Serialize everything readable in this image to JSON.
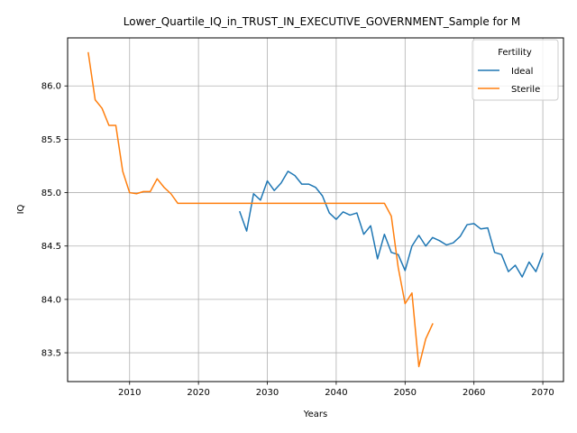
{
  "chart_data": {
    "type": "line",
    "title": "Lower_Quartile_IQ_in_TRUST_IN_EXECUTIVE_GOVERNMENT_Sample for M",
    "xlabel": "Years",
    "ylabel": "IQ",
    "xlim": [
      2001,
      2073
    ],
    "ylim": [
      83.23,
      86.45
    ],
    "xticks": [
      2010,
      2020,
      2030,
      2040,
      2050,
      2060,
      2070
    ],
    "yticks": [
      83.5,
      84.0,
      84.5,
      85.0,
      85.5,
      86.0
    ],
    "ytick_labels": [
      "83.5",
      "84.0",
      "84.5",
      "85.0",
      "85.5",
      "86.0"
    ],
    "grid": true,
    "legend": {
      "title": "Fertility",
      "placement": "top-right"
    },
    "series": [
      {
        "name": "Ideal",
        "color": "#1f77b4",
        "x": [
          2026,
          2027,
          2028,
          2029,
          2030,
          2031,
          2032,
          2033,
          2034,
          2035,
          2036,
          2037,
          2038,
          2039,
          2040,
          2041,
          2042,
          2043,
          2044,
          2045,
          2046,
          2047,
          2048,
          2049,
          2050,
          2051,
          2052,
          2053,
          2054,
          2055,
          2056,
          2057,
          2058,
          2059,
          2060,
          2061,
          2062,
          2063,
          2064,
          2065,
          2066,
          2067,
          2068,
          2069,
          2070
        ],
        "values": [
          84.82,
          84.64,
          84.99,
          84.93,
          85.11,
          85.02,
          85.09,
          85.2,
          85.16,
          85.08,
          85.08,
          85.05,
          84.97,
          84.81,
          84.75,
          84.82,
          84.79,
          84.81,
          84.61,
          84.69,
          84.38,
          84.61,
          84.44,
          84.42,
          84.27,
          84.5,
          84.6,
          84.5,
          84.58,
          84.55,
          84.51,
          84.53,
          84.59,
          84.7,
          84.71,
          84.66,
          84.67,
          84.44,
          84.42,
          84.26,
          84.32,
          84.21,
          84.35,
          84.26,
          84.43
        ]
      },
      {
        "name": "Sterile",
        "color": "#ff7f0e",
        "x": [
          2004,
          2005,
          2006,
          2007,
          2008,
          2009,
          2010,
          2011,
          2012,
          2013,
          2014,
          2015,
          2016,
          2017,
          2018,
          2019,
          2020,
          2021,
          2022,
          2023,
          2024,
          2025,
          2026,
          2027,
          2028,
          2029,
          2030,
          2031,
          2032,
          2033,
          2034,
          2035,
          2036,
          2037,
          2038,
          2039,
          2040,
          2041,
          2042,
          2043,
          2044,
          2045,
          2046,
          2047,
          2048,
          2049,
          2050,
          2051,
          2052,
          2053,
          2054
        ],
        "values": [
          86.31,
          85.87,
          85.79,
          85.63,
          85.63,
          85.2,
          85.0,
          84.99,
          85.01,
          85.01,
          85.13,
          85.05,
          84.99,
          84.9,
          84.9,
          84.9,
          84.9,
          84.9,
          84.9,
          84.9,
          84.9,
          84.9,
          84.9,
          84.9,
          84.9,
          84.9,
          84.9,
          84.9,
          84.9,
          84.9,
          84.9,
          84.9,
          84.9,
          84.9,
          84.9,
          84.9,
          84.9,
          84.9,
          84.9,
          84.9,
          84.9,
          84.9,
          84.9,
          84.9,
          84.78,
          84.3,
          83.96,
          84.06,
          83.37,
          83.63,
          83.77
        ]
      }
    ]
  }
}
